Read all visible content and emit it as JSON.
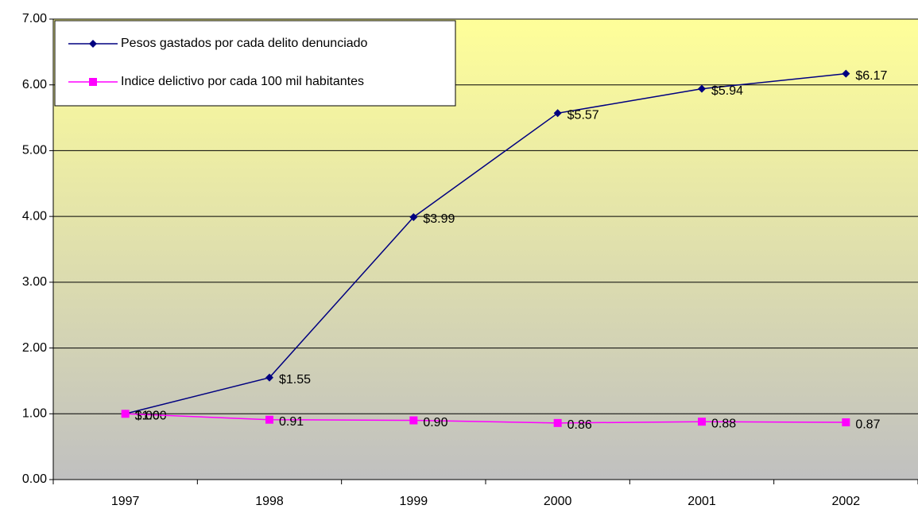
{
  "chart_data": {
    "type": "line",
    "categories": [
      "1997",
      "1998",
      "1999",
      "2000",
      "2001",
      "2002"
    ],
    "series": [
      {
        "name": "Pesos gastados por cada delito denunciado",
        "color": "#000080",
        "marker": "diamond",
        "values": [
          1.0,
          1.55,
          3.99,
          5.57,
          5.94,
          6.17
        ],
        "value_labels": [
          "$1.00",
          "$1.55",
          "$3.99",
          "$5.57",
          "$5.94",
          "$6.17"
        ]
      },
      {
        "name": "Indice delictivo por cada 100 mil habitantes",
        "color": "#ff00ff",
        "marker": "square",
        "values": [
          1.0,
          0.91,
          0.9,
          0.86,
          0.88,
          0.87
        ],
        "value_labels": [
          "1.00",
          "0.91",
          "0.90",
          "0.86",
          "0.88",
          "0.87"
        ]
      }
    ],
    "ylim": [
      0,
      7
    ],
    "yticks": [
      {
        "value": 0,
        "label": "0.00"
      },
      {
        "value": 1,
        "label": "1.00"
      },
      {
        "value": 2,
        "label": "2.00"
      },
      {
        "value": 3,
        "label": "3.00"
      },
      {
        "value": 4,
        "label": "4.00"
      },
      {
        "value": 5,
        "label": "5.00"
      },
      {
        "value": 6,
        "label": "6.00"
      },
      {
        "value": 7,
        "label": "7.00"
      }
    ],
    "grid": true,
    "legend": "upper left"
  }
}
